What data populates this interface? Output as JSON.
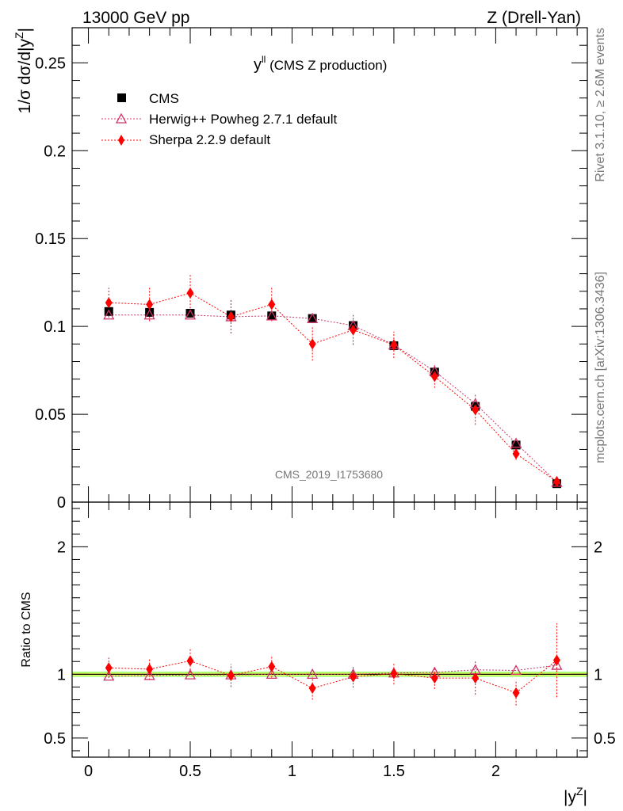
{
  "header": {
    "left": "13000 GeV pp",
    "right": "Z (Drell-Yan)"
  },
  "side_text": {
    "rivet": "Rivet 3.1.10, ≥ 2.6M events",
    "mcplots": "mcplots.cern.ch [arXiv:1306.3436]"
  },
  "watermark": "CMS_2019_I1753680",
  "colors": {
    "cms": "#000000",
    "herwig": "#cc3366",
    "sherpa": "#ff0000",
    "band_stat": "#ffff66",
    "band_total": "#99ff66"
  },
  "chart_data": [
    {
      "type": "scatter",
      "panel": "main",
      "title": "y^ll (CMS Z production)",
      "title_main": "y",
      "title_sup": "ll",
      "title_rest": " (CMS Z production)",
      "ylabel": "1/σ dσ/d|y^Z|",
      "ylabel_main": "1/σ dσ/d|y",
      "ylabel_sup": "Z",
      "ylabel_end": "|",
      "xlim": [
        -0.08,
        2.45
      ],
      "ylim": [
        0,
        0.27
      ],
      "yticks": [
        0,
        0.05,
        0.1,
        0.15,
        0.2,
        0.25
      ],
      "ytick_labels": [
        "0",
        "0.05",
        "0.1",
        "0.15",
        "0.2",
        "0.25"
      ],
      "legend_position": "top-left",
      "grid": false,
      "x": [
        0.1,
        0.3,
        0.5,
        0.7,
        0.9,
        1.1,
        1.3,
        1.5,
        1.7,
        1.9,
        2.1,
        2.3
      ],
      "series": [
        {
          "name": "CMS",
          "marker": "square",
          "values": [
            0.1085,
            0.108,
            0.1075,
            0.1065,
            0.106,
            0.1045,
            0.1005,
            0.089,
            0.074,
            0.0545,
            0.0325,
            0.0105
          ]
        },
        {
          "name": "Herwig++ Powheg 2.7.1 default",
          "marker": "triangle-open",
          "values": [
            0.1065,
            0.1065,
            0.1065,
            0.1055,
            0.106,
            0.1045,
            0.1005,
            0.0895,
            0.0745,
            0.056,
            0.0335,
            0.0113
          ],
          "err": [
            0.001,
            0.001,
            0.001,
            0.001,
            0.001,
            0.001,
            0.001,
            0.001,
            0.001,
            0.001,
            0.001,
            0.0005
          ]
        },
        {
          "name": "Sherpa 2.2.9 default",
          "marker": "diamond",
          "values": [
            0.1135,
            0.1125,
            0.119,
            0.1055,
            0.1125,
            0.09,
            0.098,
            0.0895,
            0.0715,
            0.0525,
            0.0275,
            0.0117
          ],
          "err": [
            0.0085,
            0.0095,
            0.0105,
            0.0095,
            0.0095,
            0.0095,
            0.0085,
            0.0075,
            0.0065,
            0.0085,
            0.0035,
            0.0035
          ]
        }
      ]
    },
    {
      "type": "scatter",
      "panel": "ratio",
      "ylabel": "Ratio to CMS",
      "xlabel": "|y^Z|",
      "xlabel_main": "|y",
      "xlabel_sup": "Z",
      "xlabel_end": "|",
      "xlim": [
        -0.08,
        2.45
      ],
      "ylim": [
        0.35,
        2.35
      ],
      "xticks": [
        0,
        0.5,
        1,
        1.5,
        2
      ],
      "xtick_labels": [
        "0",
        "0.5",
        "1",
        "1.5",
        "2"
      ],
      "yticks": [
        0.5,
        1,
        2
      ],
      "ytick_labels": [
        "0.5",
        "1",
        "2"
      ],
      "x": [
        0.1,
        0.3,
        0.5,
        0.7,
        0.9,
        1.1,
        1.3,
        1.5,
        1.7,
        1.9,
        2.1,
        2.3
      ],
      "band": {
        "stat": 0.01,
        "total": 0.02
      },
      "series": [
        {
          "name": "Herwig++ Powheg 2.7.1 default",
          "values": [
            0.985,
            0.99,
            0.995,
            0.995,
            1.0,
            1.0,
            1.0,
            1.01,
            1.015,
            1.035,
            1.03,
            1.07
          ]
        },
        {
          "name": "Sherpa 2.2.9 default",
          "values": [
            1.05,
            1.04,
            1.105,
            0.99,
            1.06,
            0.89,
            0.98,
            1.005,
            0.97,
            0.97,
            0.855,
            1.11
          ],
          "err": [
            0.08,
            0.085,
            0.095,
            0.09,
            0.085,
            0.09,
            0.085,
            0.085,
            0.085,
            0.13,
            0.1,
            0.29
          ]
        }
      ]
    }
  ]
}
